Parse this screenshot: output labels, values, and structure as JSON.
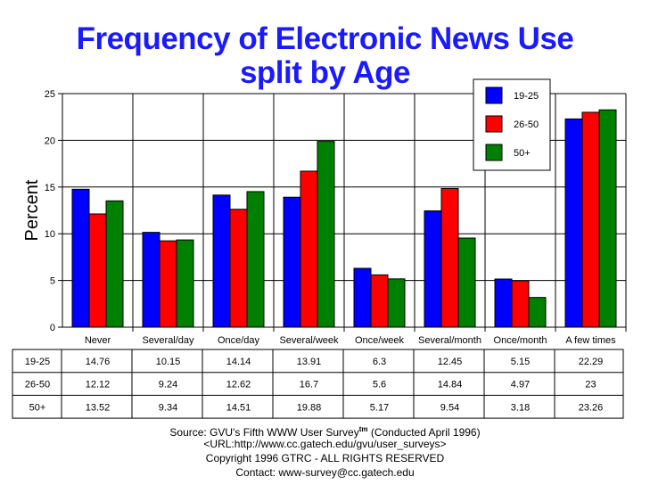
{
  "chart_data": {
    "type": "bar",
    "title": "Frequency of Electronic News Use",
    "subtitle": "split by Age",
    "xlabel": "",
    "ylabel": "Percent",
    "ylim": [
      0,
      25
    ],
    "yticks": [
      0,
      5,
      10,
      15,
      20,
      25
    ],
    "grid": true,
    "legend_position": "top-right",
    "categories": [
      "Never",
      "Several/day",
      "Once/day",
      "Several/week",
      "Once/week",
      "Several/month",
      "Once/month",
      "A few times"
    ],
    "series": [
      {
        "name": "19-25",
        "color": "#0000ff",
        "values": [
          14.76,
          10.15,
          14.14,
          13.91,
          6.3,
          12.45,
          5.15,
          22.29
        ]
      },
      {
        "name": "26-50",
        "color": "#ff0000",
        "values": [
          12.12,
          9.24,
          12.62,
          16.7,
          5.6,
          14.84,
          4.97,
          23
        ]
      },
      {
        "name": "50+",
        "color": "#008000",
        "values": [
          13.52,
          9.34,
          14.51,
          19.88,
          5.17,
          9.54,
          3.18,
          23.26
        ]
      }
    ]
  },
  "footer": {
    "source": "Source: GVU's Fifth WWW User Survey",
    "tm": "tm",
    "conducted": " (Conducted April 1996)",
    "url": "<URL:http://www.cc.gatech.edu/gvu/user_surveys>",
    "copyright": "Copyright 1996 GTRC -  ALL RIGHTS RESERVED",
    "contact": "Contact: www-survey@cc.gatech.edu"
  }
}
